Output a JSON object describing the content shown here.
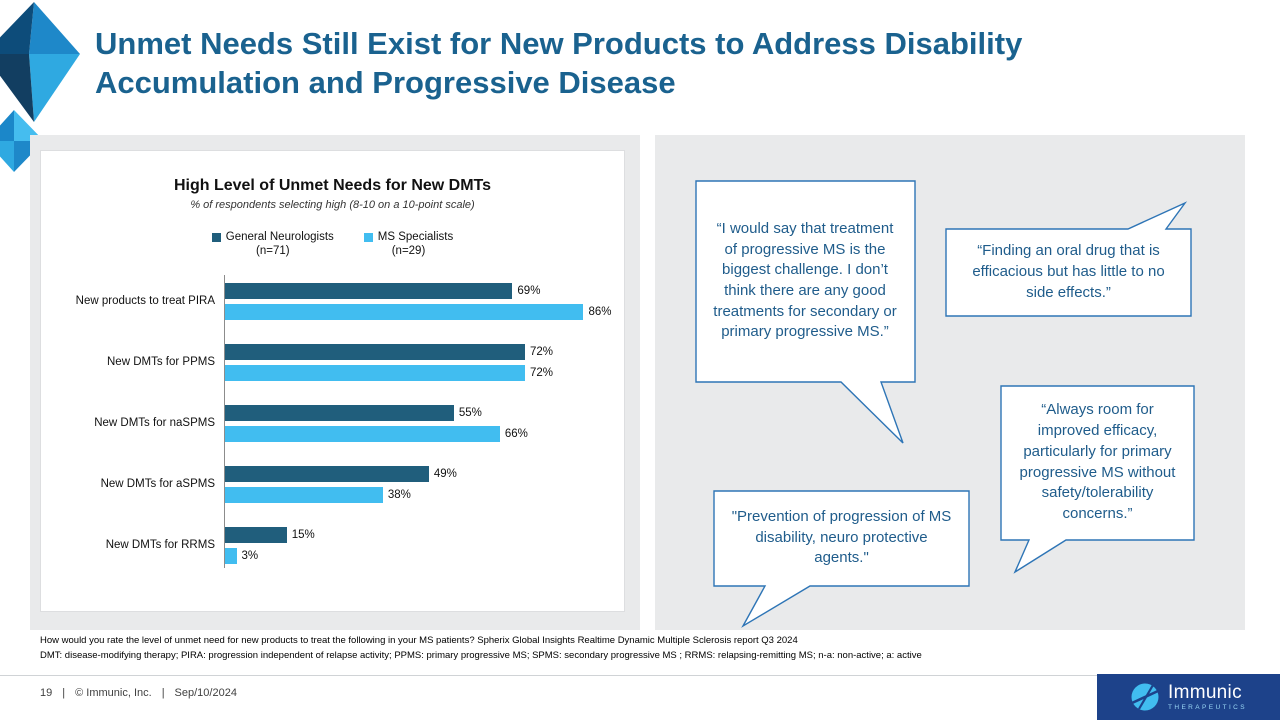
{
  "colors": {
    "title_blue": "#1A628F",
    "panel_gray": "#E9EAEB",
    "quote_border": "#2E75B6",
    "quote_text": "#1F5C8B",
    "brand_bg": "#1D428A",
    "brand_accent": "#41BDF0"
  },
  "slide": {
    "title": "Unmet Needs Still Exist for New Products to Address Disability Accumulation and Progressive Disease",
    "footnote_line1": "How would you rate the level of unmet need for new products to treat the following in your MS patients? Spherix Global Insights Realtime Dynamic Multiple Sclerosis report Q3 2024",
    "footnote_line2": "DMT: disease-modifying therapy; PIRA: progression independent of relapse activity; PPMS: primary progressive MS; SPMS: secondary progressive MS ; RRMS: relapsing-remitting MS; n-a: non-active; a: active",
    "footer": {
      "page_number": "19",
      "sep": "|",
      "copyright": "© Immunic, Inc.",
      "date": "Sep/10/2024"
    },
    "brand": {
      "name": "Immunic",
      "tagline": "THERAPEUTICS"
    }
  },
  "chart_data": {
    "type": "bar",
    "orientation": "horizontal",
    "title": "High Level of Unmet Needs for New DMTs",
    "subtitle": "% of respondents selecting high (8-10 on a 10-point scale)",
    "categories": [
      "New products to treat PIRA",
      "New DMTs for PPMS",
      "New DMTs for naSPMS",
      "New DMTs for aSPMS",
      "New DMTs for RRMS"
    ],
    "series": [
      {
        "name": "General Neurologists",
        "n_label": "(n=71)",
        "color": "#205E7C",
        "values": [
          69,
          72,
          55,
          49,
          15
        ]
      },
      {
        "name": "MS Specialists",
        "n_label": "(n=29)",
        "color": "#41BDF0",
        "values": [
          86,
          72,
          66,
          38,
          3
        ]
      }
    ],
    "value_suffix": "%",
    "xlim": [
      0,
      95
    ],
    "grid": false,
    "legend_position": "top"
  },
  "quotes": [
    {
      "text": "“I would say that treatment of progressive MS is the biggest challenge. I don’t think there are any good treatments for secondary or primary progressive MS.”"
    },
    {
      "text": "“Finding an oral drug that is efficacious but has little to no side effects.”"
    },
    {
      "text": "\"Prevention of progression of MS disability, neuro protective agents.\""
    },
    {
      "text": "“Always room for improved efficacy, particularly for primary progressive MS without safety/tolerability concerns.”"
    }
  ]
}
